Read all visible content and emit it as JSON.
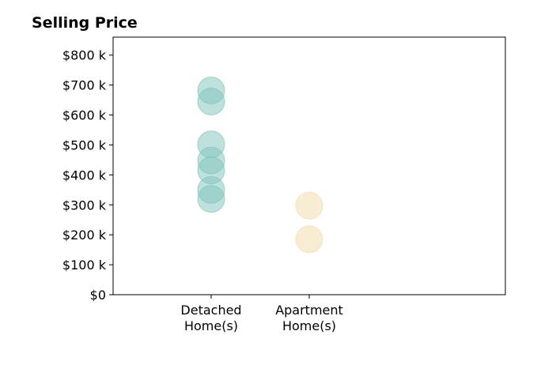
{
  "chart_data": {
    "type": "scatter",
    "title": "Selling Price",
    "xlabel": "",
    "ylabel": "",
    "categories": [
      {
        "lines": [
          "Detached",
          "Home(s)"
        ]
      },
      {
        "lines": [
          "Apartment",
          "Home(s)"
        ]
      }
    ],
    "series": [
      {
        "category_index": 0,
        "color": "#7fc4bc",
        "values": [
          682000,
          645000,
          502000,
          448000,
          415000,
          350000,
          320000
        ]
      },
      {
        "category_index": 1,
        "color": "#f2dca8",
        "values": [
          297000,
          185000
        ]
      }
    ],
    "ylim": [
      0,
      860000
    ],
    "yticks": [
      0,
      100000,
      200000,
      300000,
      400000,
      500000,
      600000,
      700000,
      800000
    ],
    "ytick_labels": [
      "$0",
      "$100 k",
      "$200 k",
      "$300 k",
      "$400 k",
      "$500 k",
      "$600 k",
      "$700 k",
      "$800 k"
    ],
    "grid": false,
    "legend": "none"
  }
}
